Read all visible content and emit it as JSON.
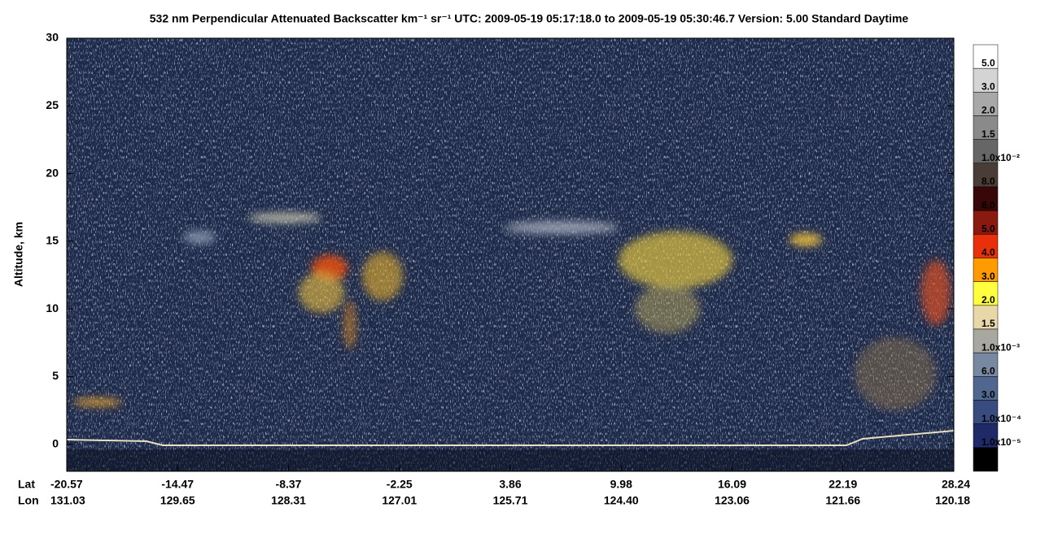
{
  "chart_data": {
    "type": "curtain",
    "title": "532 nm Perpendicular Attenuated Backscatter km⁻¹ sr⁻¹  UTC: 2009-05-19 05:17:18.0 to 2009-05-19 05:30:46.7  Version: 5.00 Standard Daytime",
    "ylabel": "Altitude, km",
    "ylim": [
      -2,
      30
    ],
    "yticks": [
      0,
      5,
      10,
      15,
      20,
      25,
      30
    ],
    "lat_label": "Lat",
    "lon_label": "Lon",
    "lat_ticks": [
      "-20.57",
      "-14.47",
      "-8.37",
      "-2.25",
      "3.86",
      "9.98",
      "16.09",
      "22.19",
      "28.24"
    ],
    "lon_ticks": [
      "131.03",
      "129.65",
      "128.31",
      "127.01",
      "125.71",
      "124.40",
      "123.06",
      "121.66",
      "120.18"
    ],
    "colorbar": {
      "colors": [
        "#ffffff",
        "#d4d4d4",
        "#a8a8a8",
        "#8a8a8a",
        "#666666",
        "#4a3d38",
        "#380808",
        "#8a1a10",
        "#e8300a",
        "#ff9a00",
        "#ffff40",
        "#e8d8a8",
        "#a8a8a0",
        "#7888a0",
        "#506890",
        "#384c80",
        "#202a68",
        "#000000"
      ],
      "labels": [
        "5.0",
        "3.0",
        "2.0",
        "1.5",
        "1.0x10⁻²",
        "8.0",
        "6.0",
        "5.0",
        "4.0",
        "3.0",
        "2.0",
        "1.5",
        "1.0x10⁻³",
        "6.0",
        "3.0",
        "1.0x10⁻⁴",
        "1.0x10⁻⁵"
      ]
    }
  }
}
